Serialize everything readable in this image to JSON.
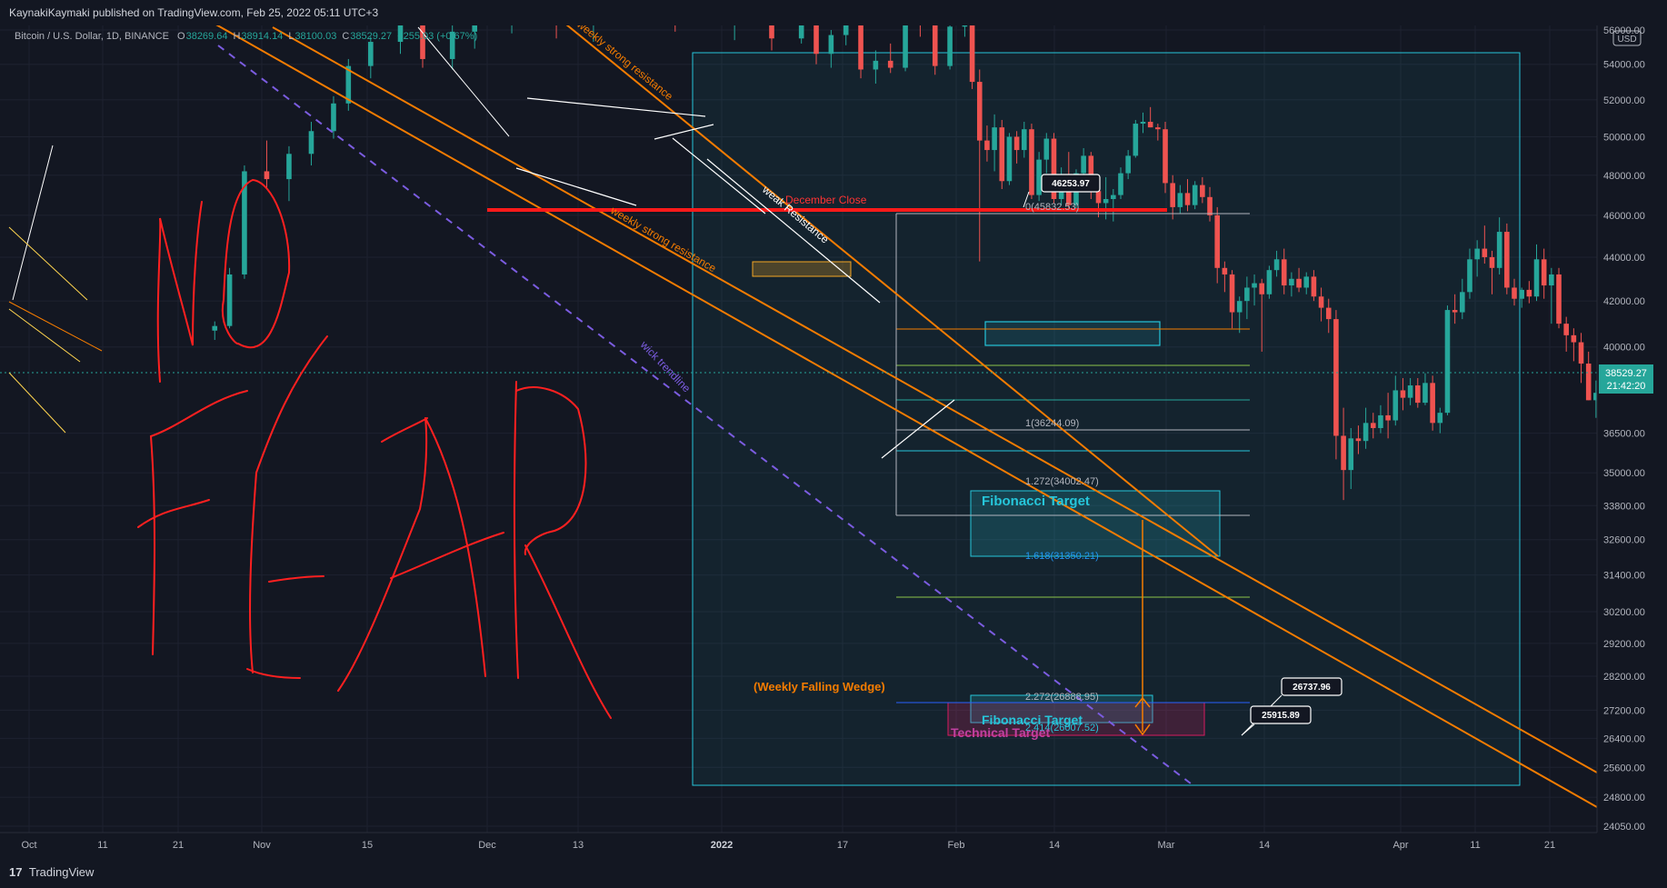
{
  "header": {
    "publisher": "KaynakiKaymaki published on TradingView.com, Feb 25, 2022 05:11 UTC+3"
  },
  "symbol": {
    "title": "Bitcoin / U.S. Dollar, 1D, BINANCE",
    "ohlc": [
      {
        "k": "O",
        "v": "38269.64"
      },
      {
        "k": "H",
        "v": "38914.14"
      },
      {
        "k": "L",
        "v": "38100.03"
      },
      {
        "k": "C",
        "v": "38529.27"
      },
      {
        "k": "",
        "v": "+255.03 (+0.67%)"
      }
    ]
  },
  "footer": {
    "logo": "17",
    "brand": "TradingView"
  },
  "colors": {
    "background": "#131722",
    "grid": "#1e2230",
    "bull": "#26a69a",
    "bear": "#ef5350",
    "orange": "#f57c00",
    "cyan": "#26c6da",
    "red": "#ff1a1a",
    "purple": "#7b5ce0",
    "axis_text": "#b2b5be"
  },
  "chart_data": {
    "type": "candlestick",
    "symbol": "BTCUSD",
    "timeframe": "1D",
    "x_tick_labels": [
      "Oct",
      "11",
      "21",
      "Nov",
      "15",
      "Dec",
      "13",
      "2022",
      "17",
      "Feb",
      "14",
      "Mar",
      "14",
      "Apr",
      "11",
      "21"
    ],
    "y_tick_labels": [
      "56000.00",
      "54000.00",
      "52000.00",
      "50000.00",
      "48000.00",
      "46000.00",
      "44000.00",
      "42000.00",
      "40000.00",
      "36500.00",
      "35000.00",
      "33800.00",
      "32600.00",
      "31400.00",
      "30200.00",
      "29200.00",
      "28200.00",
      "27200.00",
      "26400.00",
      "25600.00",
      "24800.00",
      "24050.00"
    ],
    "y_axis_unit": "USD",
    "y_scale": "log",
    "y_range": [
      23800,
      56800
    ],
    "last_price": {
      "price": "38529.27",
      "countdown": "21:42:20"
    },
    "candles": [
      {
        "t": 25,
        "o": 40700,
        "h": 41100,
        "l": 40300,
        "c": 40900
      },
      {
        "t": 27,
        "o": 40900,
        "h": 43500,
        "l": 40800,
        "c": 43200
      },
      {
        "t": 29,
        "o": 43200,
        "h": 48500,
        "l": 43000,
        "c": 48200
      },
      {
        "t": 32,
        "o": 48200,
        "h": 49800,
        "l": 47300,
        "c": 47800
      },
      {
        "t": 35,
        "o": 47800,
        "h": 49500,
        "l": 46700,
        "c": 49100
      },
      {
        "t": 38,
        "o": 49100,
        "h": 50800,
        "l": 48500,
        "c": 50300
      },
      {
        "t": 41,
        "o": 50300,
        "h": 52200,
        "l": 49900,
        "c": 51800
      },
      {
        "t": 43,
        "o": 51800,
        "h": 54300,
        "l": 51400,
        "c": 53900
      },
      {
        "t": 46,
        "o": 53900,
        "h": 55600,
        "l": 53200,
        "c": 55300
      },
      {
        "t": 50,
        "o": 55300,
        "h": 57000,
        "l": 54600,
        "c": 56600
      },
      {
        "t": 53,
        "o": 56600,
        "h": 57000,
        "l": 53800,
        "c": 54300
      },
      {
        "t": 57,
        "o": 54300,
        "h": 56400,
        "l": 53700,
        "c": 55900
      },
      {
        "t": 60,
        "o": 55900,
        "h": 56900,
        "l": 54900,
        "c": 56400
      },
      {
        "t": 65,
        "o": 56400,
        "h": 57000,
        "l": 55800,
        "c": 56900
      },
      {
        "t": 71,
        "o": 56900,
        "h": 57000,
        "l": 55500,
        "c": 56500
      },
      {
        "t": 76,
        "o": 56500,
        "h": 57000,
        "l": 55300,
        "c": 56800
      },
      {
        "t": 87,
        "o": 56800,
        "h": 57000,
        "l": 55900,
        "c": 56300
      },
      {
        "t": 95,
        "o": 56300,
        "h": 57000,
        "l": 55400,
        "c": 56700
      },
      {
        "t": 100,
        "o": 56700,
        "h": 57000,
        "l": 54800,
        "c": 55500
      },
      {
        "t": 104,
        "o": 55500,
        "h": 56900,
        "l": 55200,
        "c": 56400
      },
      {
        "t": 106,
        "o": 56400,
        "h": 57000,
        "l": 54000,
        "c": 54600
      },
      {
        "t": 108,
        "o": 54600,
        "h": 56000,
        "l": 53800,
        "c": 55700
      },
      {
        "t": 110,
        "o": 55700,
        "h": 57000,
        "l": 55100,
        "c": 56500
      },
      {
        "t": 112,
        "o": 56500,
        "h": 57000,
        "l": 53200,
        "c": 53700
      },
      {
        "t": 114,
        "o": 53700,
        "h": 54800,
        "l": 52900,
        "c": 54200
      },
      {
        "t": 116,
        "o": 54200,
        "h": 55200,
        "l": 53500,
        "c": 53800
      },
      {
        "t": 118,
        "o": 53800,
        "h": 57000,
        "l": 53600,
        "c": 56700
      },
      {
        "t": 120,
        "o": 56700,
        "h": 57000,
        "l": 55600,
        "c": 56300
      },
      {
        "t": 122,
        "o": 56300,
        "h": 56900,
        "l": 53400,
        "c": 53900
      },
      {
        "t": 124,
        "o": 53900,
        "h": 57000,
        "l": 53700,
        "c": 56200
      },
      {
        "t": 126,
        "o": 56200,
        "h": 57000,
        "l": 55600,
        "c": 56800
      },
      {
        "t": 127,
        "o": 56800,
        "h": 57000,
        "l": 52600,
        "c": 53000
      },
      {
        "t": 128,
        "o": 53000,
        "h": 53700,
        "l": 43800,
        "c": 49800
      },
      {
        "t": 129,
        "o": 49800,
        "h": 50600,
        "l": 48700,
        "c": 49300
      },
      {
        "t": 130,
        "o": 49300,
        "h": 51200,
        "l": 48200,
        "c": 50500
      },
      {
        "t": 131,
        "o": 50500,
        "h": 50900,
        "l": 47300,
        "c": 47700
      },
      {
        "t": 132,
        "o": 47700,
        "h": 50200,
        "l": 47500,
        "c": 50000
      },
      {
        "t": 133,
        "o": 50000,
        "h": 50300,
        "l": 48600,
        "c": 49300
      },
      {
        "t": 134,
        "o": 49300,
        "h": 50800,
        "l": 48900,
        "c": 50400
      },
      {
        "t": 135,
        "o": 50400,
        "h": 50700,
        "l": 46800,
        "c": 47000
      },
      {
        "t": 136,
        "o": 47000,
        "h": 49200,
        "l": 46700,
        "c": 48800
      },
      {
        "t": 137,
        "o": 48800,
        "h": 50200,
        "l": 48100,
        "c": 49900
      },
      {
        "t": 138,
        "o": 49900,
        "h": 50200,
        "l": 46600,
        "c": 46800
      },
      {
        "t": 139,
        "o": 46800,
        "h": 48400,
        "l": 46500,
        "c": 47900
      },
      {
        "t": 140,
        "o": 47900,
        "h": 49200,
        "l": 46200,
        "c": 46500
      },
      {
        "t": 141,
        "o": 46500,
        "h": 48300,
        "l": 46300,
        "c": 48100
      },
      {
        "t": 142,
        "o": 48100,
        "h": 49400,
        "l": 47500,
        "c": 49000
      },
      {
        "t": 143,
        "o": 49000,
        "h": 49200,
        "l": 46800,
        "c": 47200
      },
      {
        "t": 144,
        "o": 47200,
        "h": 47800,
        "l": 45900,
        "c": 46600
      },
      {
        "t": 145,
        "o": 46600,
        "h": 47900,
        "l": 45800,
        "c": 46800
      },
      {
        "t": 146,
        "o": 46800,
        "h": 47300,
        "l": 45700,
        "c": 47000
      },
      {
        "t": 147,
        "o": 47000,
        "h": 48400,
        "l": 46800,
        "c": 48100
      },
      {
        "t": 148,
        "o": 48100,
        "h": 49300,
        "l": 47800,
        "c": 49000
      },
      {
        "t": 149,
        "o": 49000,
        "h": 50900,
        "l": 48900,
        "c": 50700
      },
      {
        "t": 150,
        "o": 50700,
        "h": 51300,
        "l": 50200,
        "c": 50800
      },
      {
        "t": 151,
        "o": 50800,
        "h": 51600,
        "l": 50500,
        "c": 50500
      },
      {
        "t": 152,
        "o": 50500,
        "h": 50700,
        "l": 49800,
        "c": 50400
      },
      {
        "t": 153,
        "o": 50400,
        "h": 50800,
        "l": 47100,
        "c": 47600
      },
      {
        "t": 154,
        "o": 47600,
        "h": 48000,
        "l": 45800,
        "c": 46400
      },
      {
        "t": 155,
        "o": 46400,
        "h": 47500,
        "l": 46100,
        "c": 47100
      },
      {
        "t": 156,
        "o": 47100,
        "h": 47800,
        "l": 46200,
        "c": 46500
      },
      {
        "t": 157,
        "o": 46500,
        "h": 47700,
        "l": 46300,
        "c": 47500
      },
      {
        "t": 158,
        "o": 47500,
        "h": 47900,
        "l": 46600,
        "c": 46900
      },
      {
        "t": 159,
        "o": 46900,
        "h": 47400,
        "l": 45700,
        "c": 46000
      },
      {
        "t": 160,
        "o": 46000,
        "h": 46400,
        "l": 42800,
        "c": 43500
      },
      {
        "t": 161,
        "o": 43500,
        "h": 43800,
        "l": 42400,
        "c": 43200
      },
      {
        "t": 162,
        "o": 43200,
        "h": 43400,
        "l": 40800,
        "c": 41500
      },
      {
        "t": 163,
        "o": 41500,
        "h": 42200,
        "l": 40600,
        "c": 42000
      },
      {
        "t": 164,
        "o": 42000,
        "h": 43100,
        "l": 41200,
        "c": 42600
      },
      {
        "t": 165,
        "o": 42600,
        "h": 43200,
        "l": 41800,
        "c": 42800
      },
      {
        "t": 166,
        "o": 42800,
        "h": 43000,
        "l": 39800,
        "c": 42300
      },
      {
        "t": 167,
        "o": 42300,
        "h": 43600,
        "l": 42100,
        "c": 43400
      },
      {
        "t": 168,
        "o": 43400,
        "h": 44300,
        "l": 43100,
        "c": 43900
      },
      {
        "t": 169,
        "o": 43900,
        "h": 44400,
        "l": 42300,
        "c": 42700
      },
      {
        "t": 170,
        "o": 42700,
        "h": 43300,
        "l": 42200,
        "c": 43000
      },
      {
        "t": 171,
        "o": 43000,
        "h": 43500,
        "l": 42400,
        "c": 42600
      },
      {
        "t": 172,
        "o": 42600,
        "h": 43300,
        "l": 42300,
        "c": 43100
      },
      {
        "t": 173,
        "o": 43100,
        "h": 43400,
        "l": 42000,
        "c": 42200
      },
      {
        "t": 174,
        "o": 42200,
        "h": 42600,
        "l": 41100,
        "c": 41700
      },
      {
        "t": 175,
        "o": 41700,
        "h": 42100,
        "l": 40600,
        "c": 41200
      },
      {
        "t": 176,
        "o": 41200,
        "h": 41600,
        "l": 35500,
        "c": 36400
      },
      {
        "t": 177,
        "o": 36400,
        "h": 37500,
        "l": 34000,
        "c": 35100
      },
      {
        "t": 178,
        "o": 35100,
        "h": 36700,
        "l": 34400,
        "c": 36300
      },
      {
        "t": 179,
        "o": 36300,
        "h": 36800,
        "l": 35700,
        "c": 36200
      },
      {
        "t": 180,
        "o": 36200,
        "h": 37500,
        "l": 35900,
        "c": 36900
      },
      {
        "t": 181,
        "o": 36900,
        "h": 37300,
        "l": 36300,
        "c": 36700
      },
      {
        "t": 182,
        "o": 36700,
        "h": 37600,
        "l": 36500,
        "c": 37200
      },
      {
        "t": 183,
        "o": 37200,
        "h": 38100,
        "l": 36300,
        "c": 37000
      },
      {
        "t": 184,
        "o": 37000,
        "h": 38800,
        "l": 36800,
        "c": 38200
      },
      {
        "t": 185,
        "o": 38200,
        "h": 38700,
        "l": 37400,
        "c": 37900
      },
      {
        "t": 186,
        "o": 37900,
        "h": 38700,
        "l": 37600,
        "c": 38400
      },
      {
        "t": 187,
        "o": 38400,
        "h": 38700,
        "l": 37500,
        "c": 37700
      },
      {
        "t": 188,
        "o": 37700,
        "h": 38900,
        "l": 37600,
        "c": 38500
      },
      {
        "t": 189,
        "o": 38500,
        "h": 38800,
        "l": 36600,
        "c": 36900
      },
      {
        "t": 190,
        "o": 36900,
        "h": 37500,
        "l": 36500,
        "c": 37300
      },
      {
        "t": 191,
        "o": 37300,
        "h": 41800,
        "l": 37200,
        "c": 41600
      },
      {
        "t": 192,
        "o": 41600,
        "h": 42300,
        "l": 41000,
        "c": 41500
      },
      {
        "t": 193,
        "o": 41500,
        "h": 43000,
        "l": 41200,
        "c": 42400
      },
      {
        "t": 194,
        "o": 42400,
        "h": 44400,
        "l": 42100,
        "c": 43900
      },
      {
        "t": 195,
        "o": 43900,
        "h": 44800,
        "l": 43100,
        "c": 44400
      },
      {
        "t": 196,
        "o": 44400,
        "h": 45500,
        "l": 43700,
        "c": 44000
      },
      {
        "t": 197,
        "o": 44000,
        "h": 44300,
        "l": 42300,
        "c": 43500
      },
      {
        "t": 198,
        "o": 43500,
        "h": 45900,
        "l": 43200,
        "c": 45200
      },
      {
        "t": 199,
        "o": 45200,
        "h": 45600,
        "l": 42300,
        "c": 42600
      },
      {
        "t": 200,
        "o": 42600,
        "h": 43000,
        "l": 41800,
        "c": 42100
      },
      {
        "t": 201,
        "o": 42100,
        "h": 42600,
        "l": 41700,
        "c": 42500
      },
      {
        "t": 202,
        "o": 42500,
        "h": 42900,
        "l": 41900,
        "c": 42200
      },
      {
        "t": 203,
        "o": 42200,
        "h": 44600,
        "l": 42000,
        "c": 43900
      },
      {
        "t": 204,
        "o": 43900,
        "h": 44400,
        "l": 42100,
        "c": 42700
      },
      {
        "t": 205,
        "o": 42700,
        "h": 43500,
        "l": 41000,
        "c": 43200
      },
      {
        "t": 206,
        "o": 43200,
        "h": 43500,
        "l": 40800,
        "c": 41000
      },
      {
        "t": 207,
        "o": 41000,
        "h": 41300,
        "l": 39800,
        "c": 40500
      },
      {
        "t": 208,
        "o": 40500,
        "h": 40800,
        "l": 39400,
        "c": 40200
      },
      {
        "t": 209,
        "o": 40200,
        "h": 40600,
        "l": 38500,
        "c": 39300
      },
      {
        "t": 210,
        "o": 39300,
        "h": 39800,
        "l": 37800,
        "c": 37800
      },
      {
        "t": 211,
        "o": 37800,
        "h": 38600,
        "l": 37100,
        "c": 38100
      },
      {
        "t": 212,
        "o": 38100,
        "h": 38300,
        "l": 36600,
        "c": 37200
      },
      {
        "t": 213,
        "o": 37200,
        "h": 38600,
        "l": 37000,
        "c": 38300
      },
      {
        "t": 214,
        "o": 38300,
        "h": 39800,
        "l": 35000,
        "c": 37200
      },
      {
        "t": 215,
        "o": 37200,
        "h": 38900,
        "l": 37000,
        "c": 38270
      },
      {
        "t": 216,
        "o": 38270,
        "h": 38914,
        "l": 38100,
        "c": 38529
      }
    ],
    "annotations": {
      "lines": [
        "weekly strong resistance",
        "weekly strong resistance",
        "weak Resistance",
        "wick trendline",
        "December Close"
      ],
      "fib_levels": [
        "0(45832.53)",
        "1(36244.09)",
        "1.272(34002.47)",
        "1.618(31350.21)",
        "2.272(26888.95)",
        "2.414(26007.52)"
      ],
      "zones": [
        "Fibonacci Target",
        "Fibonacci Target",
        "Technical Target"
      ],
      "pattern": "(Weekly Falling Wedge)",
      "price_labels": [
        "46253.97",
        "26737.96",
        "25915.89"
      ],
      "handwriting": "NO FEAR"
    }
  }
}
